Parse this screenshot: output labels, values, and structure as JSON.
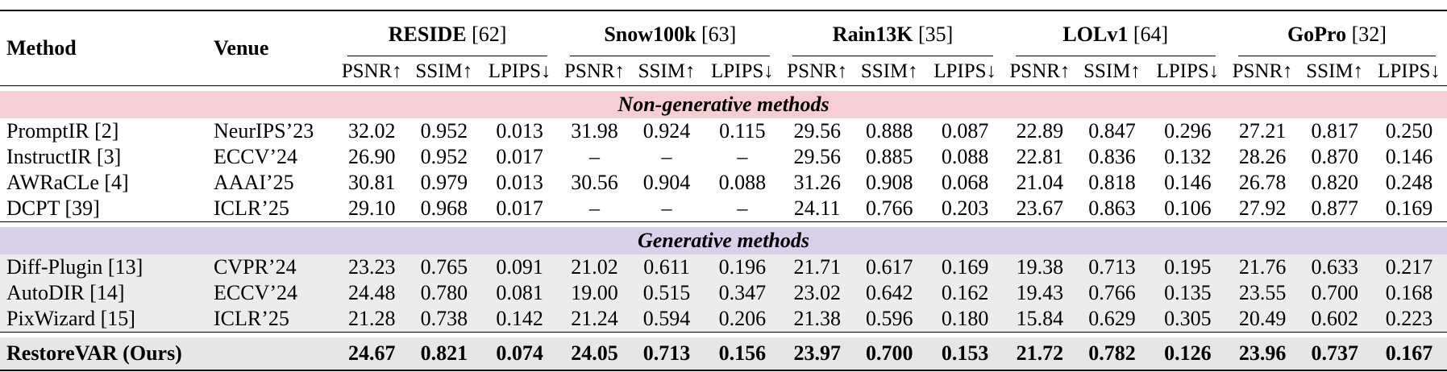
{
  "header": {
    "method_label": "Method",
    "venue_label": "Venue",
    "datasets": [
      {
        "name": "RESIDE",
        "cite": "[62]"
      },
      {
        "name": "Snow100k",
        "cite": "[63]"
      },
      {
        "name": "Rain13K",
        "cite": "[35]"
      },
      {
        "name": "LOLv1",
        "cite": "[64]"
      },
      {
        "name": "GoPro",
        "cite": "[32]"
      }
    ],
    "metrics": [
      "PSNR↑",
      "SSIM↑",
      "LPIPS↓"
    ]
  },
  "sections": [
    {
      "title": "Non-generative methods",
      "color": "#f7cfd2",
      "rows": [
        {
          "method": "PromptIR [2]",
          "venue": "NeurIPS’23",
          "values": [
            "32.02",
            "0.952",
            "0.013",
            "31.98",
            "0.924",
            "0.115",
            "29.56",
            "0.888",
            "0.087",
            "22.89",
            "0.847",
            "0.296",
            "27.21",
            "0.817",
            "0.250"
          ]
        },
        {
          "method": "InstructIR [3]",
          "venue": "ECCV’24",
          "values": [
            "26.90",
            "0.952",
            "0.017",
            "–",
            "–",
            "–",
            "29.56",
            "0.885",
            "0.088",
            "22.81",
            "0.836",
            "0.132",
            "28.26",
            "0.870",
            "0.146"
          ]
        },
        {
          "method": "AWRaCLe [4]",
          "venue": "AAAI’25",
          "values": [
            "30.81",
            "0.979",
            "0.013",
            "30.56",
            "0.904",
            "0.088",
            "31.26",
            "0.908",
            "0.068",
            "21.04",
            "0.818",
            "0.146",
            "26.78",
            "0.820",
            "0.248"
          ]
        },
        {
          "method": "DCPT [39]",
          "venue": "ICLR’25",
          "values": [
            "29.10",
            "0.968",
            "0.017",
            "–",
            "–",
            "–",
            "24.11",
            "0.766",
            "0.203",
            "23.67",
            "0.863",
            "0.106",
            "27.92",
            "0.877",
            "0.169"
          ]
        }
      ]
    },
    {
      "title": "Generative methods",
      "color": "#d9d0ea",
      "rows": [
        {
          "method": "Diff-Plugin [13]",
          "venue": "CVPR’24",
          "values": [
            "23.23",
            "0.765",
            "0.091",
            "21.02",
            "0.611",
            "0.196",
            "21.71",
            "0.617",
            "0.169",
            "19.38",
            "0.713",
            "0.195",
            "21.76",
            "0.633",
            "0.217"
          ]
        },
        {
          "method": "AutoDIR [14]",
          "venue": "ECCV’24",
          "values": [
            "24.48",
            "0.780",
            "0.081",
            "19.00",
            "0.515",
            "0.347",
            "23.02",
            "0.642",
            "0.162",
            "19.43",
            "0.766",
            "0.135",
            "23.55",
            "0.700",
            "0.168"
          ]
        },
        {
          "method": "PixWizard [15]",
          "venue": "ICLR’25",
          "values": [
            "21.28",
            "0.738",
            "0.142",
            "21.24",
            "0.594",
            "0.206",
            "21.38",
            "0.596",
            "0.180",
            "15.84",
            "0.629",
            "0.305",
            "20.49",
            "0.602",
            "0.223"
          ]
        }
      ]
    }
  ],
  "ours": {
    "method": "RestoreVAR (Ours)",
    "venue": "",
    "values": [
      "24.67",
      "0.821",
      "0.074",
      "24.05",
      "0.713",
      "0.156",
      "23.97",
      "0.700",
      "0.153",
      "21.72",
      "0.782",
      "0.126",
      "23.96",
      "0.737",
      "0.167"
    ]
  }
}
